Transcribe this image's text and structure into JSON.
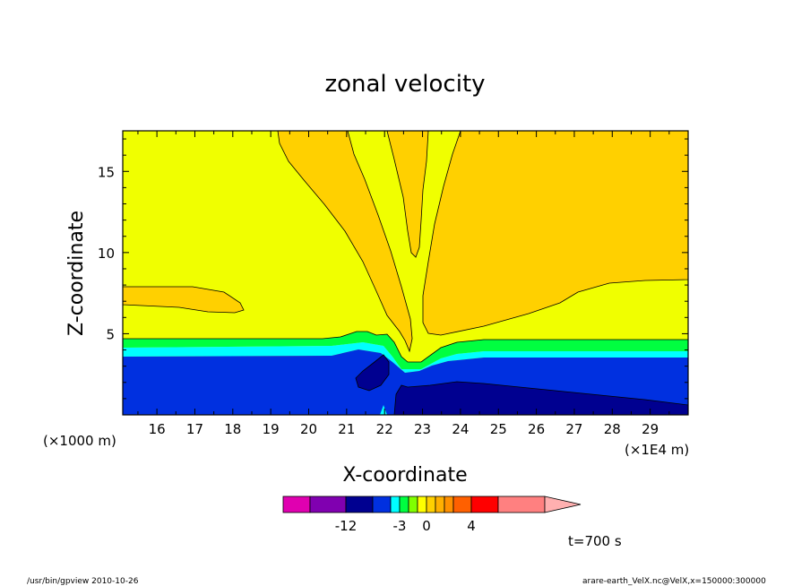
{
  "chart_data": {
    "type": "heatmap",
    "title": "zonal velocity",
    "xlabel": "X-coordinate",
    "ylabel": "Z-coordinate",
    "x_unit": "(×1E4 m)",
    "y_unit": "(×1000 m)",
    "xlim": [
      15.1,
      30.0
    ],
    "ylim": [
      0.0,
      17.5
    ],
    "x_ticks": [
      "16",
      "17",
      "18",
      "19",
      "20",
      "21",
      "22",
      "23",
      "24",
      "25",
      "26",
      "27",
      "28",
      "29"
    ],
    "x_tick_values": [
      16,
      17,
      18,
      19,
      20,
      21,
      22,
      23,
      24,
      25,
      26,
      27,
      28,
      29
    ],
    "y_ticks": [
      "5",
      "10",
      "15"
    ],
    "y_tick_values": [
      5,
      10,
      15
    ],
    "grid": false,
    "fill_levels": [
      {
        "range": "< -15",
        "color": "#e000b0"
      },
      {
        "range": "-15..-12",
        "color": "#8000b0"
      },
      {
        "range": "-12..-9",
        "color": "#000090"
      },
      {
        "range": "-9..-6",
        "color": "#0030e0"
      },
      {
        "range": "-6..-3",
        "color": "#00ffff"
      },
      {
        "range": "-3..-2",
        "color": "#00ff40"
      },
      {
        "range": "-2..-1",
        "color": "#80ff00"
      },
      {
        "range": "-1..0",
        "color": "#ffff00"
      },
      {
        "range": "0..1",
        "color": "#ffd000"
      },
      {
        "range": "1..2",
        "color": "#ffb000"
      },
      {
        "range": "2..3",
        "color": "#ff9000"
      },
      {
        "range": "3..4",
        "color": "#ff6000"
      },
      {
        "range": "4..8",
        "color": "#ff0000"
      },
      {
        "range": "8..12",
        "color": "#ff8080"
      },
      {
        "range": "> 12",
        "color": "#ffb0b0"
      }
    ],
    "colorbar_labels": [
      "-12",
      "-3",
      "0",
      "4"
    ],
    "colorbar_label_boundaries": [
      2,
      5,
      8,
      12
    ]
  },
  "annotations": {
    "time": "t=700 s",
    "footer_left": "/usr/bin/gpview  2010-10-26",
    "footer_right": "arare-earth_VelX.nc@VelX,x=150000:300000"
  }
}
